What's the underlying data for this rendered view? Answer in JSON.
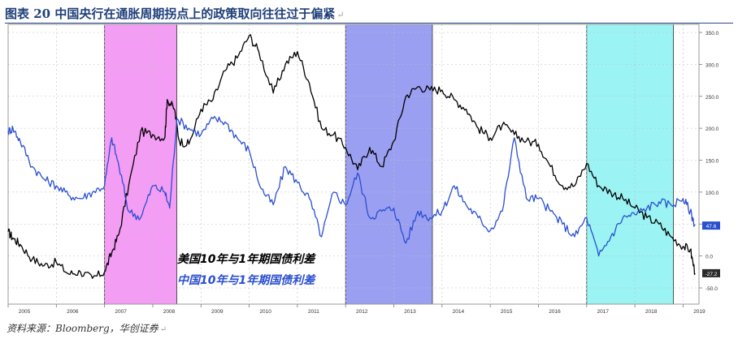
{
  "header": {
    "title": "图表 20 中国央行在通胀周期拐点上的政策取向往往过于偏紧",
    "title_mark": "↵"
  },
  "source": {
    "text": "资料来源：Bloomberg，华创证券",
    "mark": "↵"
  },
  "chart_data": {
    "type": "line",
    "title": "",
    "xlabel": "",
    "ylabel": "",
    "x_ticks": [
      "2005",
      "2006",
      "2007",
      "2008",
      "2009",
      "2010",
      "2011",
      "2012",
      "2013",
      "2014",
      "2015",
      "2016",
      "2017",
      "2018",
      "2019"
    ],
    "xlim": [
      2005.0,
      2019.33
    ],
    "ylim": [
      -50,
      350
    ],
    "y_ticks": [
      "350.0",
      "300.0",
      "250.0",
      "200.0",
      "150.0",
      "100.0",
      "50.0",
      "0.0",
      "-50.0"
    ],
    "y_tick_values": [
      350,
      300,
      250,
      200,
      150,
      100,
      50,
      0,
      -50
    ],
    "grid": true,
    "legend_placement": "bottom-center",
    "shaded_periods": [
      {
        "start": 2007.0,
        "end": 2008.5,
        "color": "#f28cf2"
      },
      {
        "start": 2012.0,
        "end": 2013.8,
        "color": "#8a8ef0"
      },
      {
        "start": 2017.0,
        "end": 2018.8,
        "color": "#8af1f1"
      }
    ],
    "series": [
      {
        "name": "美国10年与1年期国债利差",
        "color": "#000000",
        "last_value_label": "-27.2",
        "x": [
          2005.0,
          2005.1,
          2005.25,
          2005.5,
          2005.75,
          2006.0,
          2006.25,
          2006.5,
          2006.75,
          2007.0,
          2007.15,
          2007.3,
          2007.5,
          2007.75,
          2008.0,
          2008.25,
          2008.3,
          2008.45,
          2008.55,
          2008.75,
          2009.0,
          2009.25,
          2009.5,
          2009.75,
          2010.0,
          2010.2,
          2010.5,
          2010.75,
          2011.0,
          2011.25,
          2011.5,
          2011.75,
          2012.0,
          2012.25,
          2012.5,
          2012.75,
          2013.0,
          2013.25,
          2013.5,
          2013.75,
          2014.0,
          2014.25,
          2014.5,
          2014.75,
          2015.0,
          2015.25,
          2015.5,
          2015.75,
          2016.0,
          2016.25,
          2016.5,
          2016.75,
          2017.0,
          2017.25,
          2017.5,
          2017.75,
          2018.0,
          2018.25,
          2018.5,
          2018.75,
          2019.0,
          2019.15,
          2019.25
        ],
        "y": [
          38,
          28,
          18,
          -5,
          -15,
          -10,
          -28,
          -25,
          -35,
          -25,
          5,
          35,
          110,
          195,
          190,
          185,
          245,
          230,
          180,
          175,
          230,
          245,
          290,
          310,
          345,
          320,
          255,
          300,
          320,
          270,
          200,
          190,
          170,
          135,
          170,
          140,
          180,
          250,
          265,
          260,
          260,
          245,
          230,
          200,
          185,
          205,
          190,
          180,
          175,
          140,
          110,
          110,
          145,
          110,
          100,
          90,
          75,
          60,
          50,
          30,
          15,
          10,
          -27
        ]
      },
      {
        "name": "中国10年与1年期国债利差",
        "color": "#2a4fd0",
        "last_value_label": "47.6",
        "x": [
          2005.0,
          2005.1,
          2005.25,
          2005.5,
          2005.75,
          2006.0,
          2006.25,
          2006.5,
          2006.75,
          2007.0,
          2007.15,
          2007.3,
          2007.5,
          2007.75,
          2008.0,
          2008.25,
          2008.35,
          2008.5,
          2008.75,
          2009.0,
          2009.25,
          2009.5,
          2009.75,
          2010.0,
          2010.25,
          2010.5,
          2010.75,
          2011.0,
          2011.25,
          2011.5,
          2011.75,
          2012.0,
          2012.25,
          2012.5,
          2012.75,
          2013.0,
          2013.25,
          2013.5,
          2013.75,
          2014.0,
          2014.25,
          2014.5,
          2014.75,
          2015.0,
          2015.25,
          2015.5,
          2015.75,
          2016.0,
          2016.25,
          2016.5,
          2016.75,
          2017.0,
          2017.25,
          2017.5,
          2017.75,
          2018.0,
          2018.25,
          2018.5,
          2018.75,
          2019.0,
          2019.15,
          2019.25
        ],
        "y": [
          195,
          200,
          180,
          140,
          120,
          110,
          95,
          90,
          100,
          110,
          185,
          140,
          70,
          60,
          110,
          100,
          75,
          215,
          200,
          190,
          215,
          210,
          185,
          165,
          105,
          80,
          140,
          115,
          90,
          30,
          100,
          80,
          130,
          60,
          70,
          75,
          20,
          70,
          60,
          70,
          110,
          80,
          60,
          40,
          70,
          185,
          90,
          90,
          70,
          50,
          30,
          60,
          0,
          30,
          60,
          65,
          75,
          85,
          80,
          90,
          70,
          47.6
        ]
      }
    ]
  }
}
